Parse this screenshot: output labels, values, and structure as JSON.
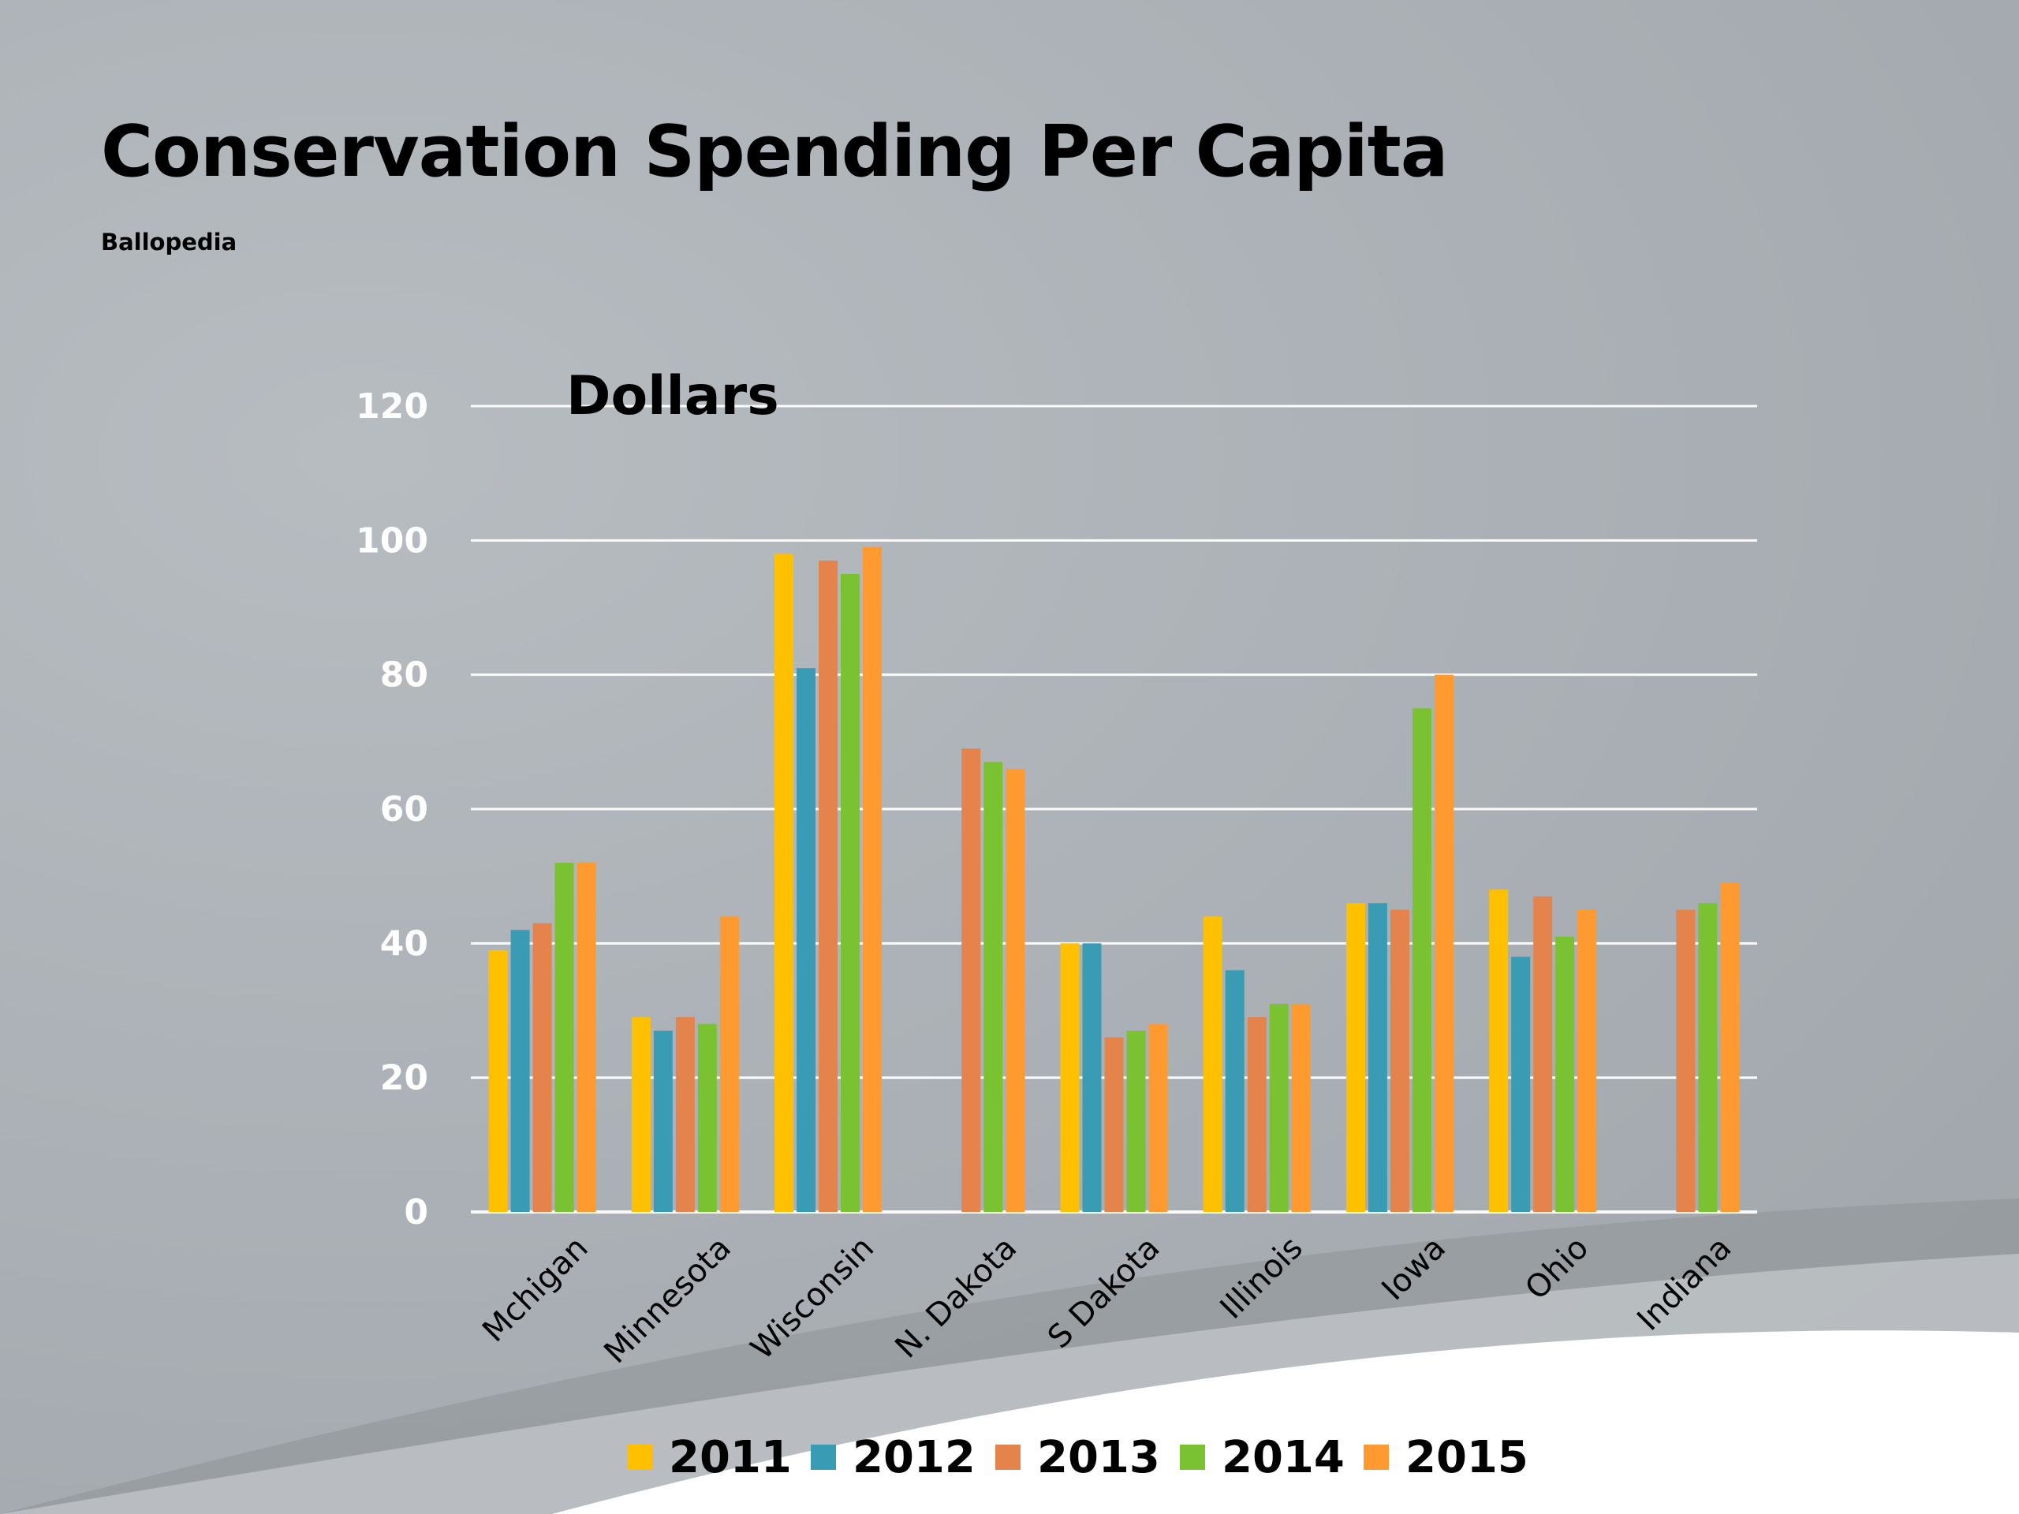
{
  "slide": {
    "title": "Conservation Spending Per Capita",
    "subtitle": "Ballopedia"
  },
  "chart_data": {
    "type": "bar",
    "ylabel": "Dollars",
    "ylim": [
      0,
      120
    ],
    "yticks": [
      0,
      20,
      40,
      60,
      80,
      100,
      120
    ],
    "grid": true,
    "legend_position": "bottom",
    "categories": [
      "Mchigan",
      "Minnesota",
      "Wisconsin",
      "N. Dakota",
      "S Dakota",
      "Illinois",
      "Iowa",
      "Ohio",
      "Indiana"
    ],
    "series": [
      {
        "name": "2011",
        "color": "#FFC000",
        "values": [
          39,
          29,
          98,
          null,
          40,
          44,
          46,
          48,
          null
        ]
      },
      {
        "name": "2012",
        "color": "#3A9BB5",
        "values": [
          42,
          27,
          81,
          null,
          40,
          36,
          46,
          38,
          null
        ]
      },
      {
        "name": "2013",
        "color": "#E4844C",
        "values": [
          43,
          29,
          97,
          69,
          26,
          29,
          45,
          47,
          45
        ]
      },
      {
        "name": "2014",
        "color": "#7AC231",
        "values": [
          52,
          28,
          95,
          67,
          27,
          31,
          75,
          41,
          46
        ]
      },
      {
        "name": "2015",
        "color": "#FF9A30",
        "values": [
          52,
          44,
          99,
          66,
          28,
          31,
          80,
          45,
          49
        ]
      }
    ]
  }
}
